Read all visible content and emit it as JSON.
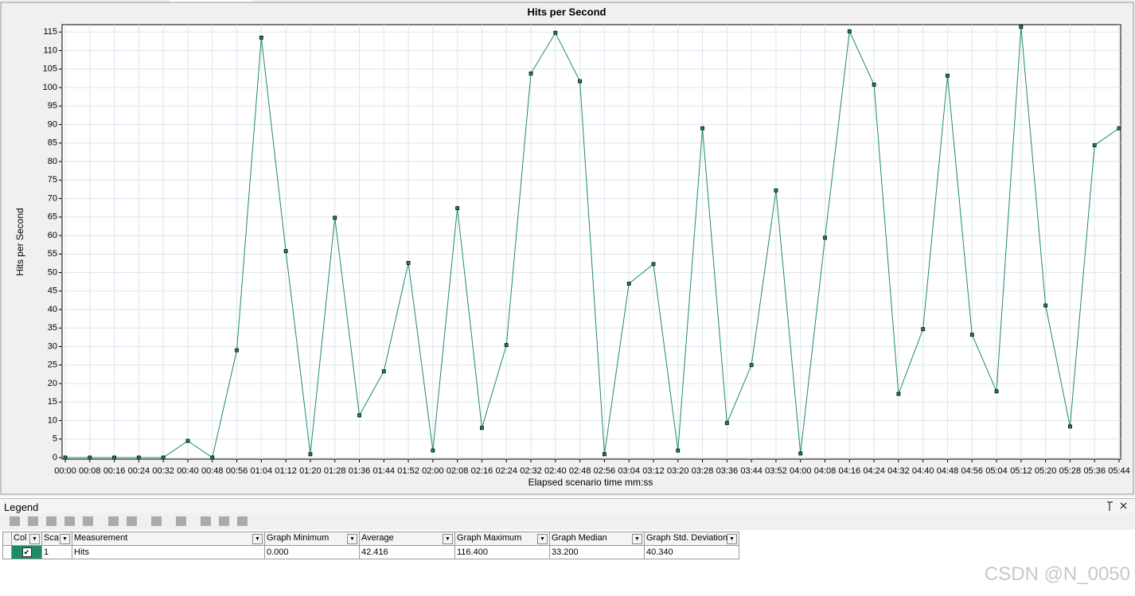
{
  "chart_data": {
    "type": "line",
    "title": "Hits per Second",
    "y_label": "Hits per Second",
    "x_label": "Elapsed scenario time mm:ss",
    "categories": [
      "00:00",
      "00:08",
      "00:16",
      "00:24",
      "00:32",
      "00:40",
      "00:48",
      "00:56",
      "01:04",
      "01:12",
      "01:20",
      "01:28",
      "01:36",
      "01:44",
      "01:52",
      "02:00",
      "02:08",
      "02:16",
      "02:24",
      "02:32",
      "02:40",
      "02:48",
      "02:56",
      "03:04",
      "03:12",
      "03:20",
      "03:28",
      "03:36",
      "03:44",
      "03:52",
      "04:00",
      "04:08",
      "04:16",
      "04:24",
      "04:32",
      "04:40",
      "04:48",
      "04:56",
      "05:04",
      "05:12",
      "05:20",
      "05:28",
      "05:36",
      "05:44"
    ],
    "series": [
      {
        "color": "#1f8a6a",
        "values": [
          0,
          0,
          0,
          0,
          0,
          4.5,
          0,
          29,
          113.5,
          55.8,
          0.9,
          64.8,
          11.4,
          23.3,
          52.6,
          1.9,
          67.4,
          8,
          30.4,
          103.8,
          114.8,
          101.7,
          0.9,
          47,
          52.3,
          1.9,
          89,
          9.3,
          25,
          72.2,
          1.1,
          59.4,
          115.2,
          100.8,
          17.2,
          34.7,
          103.2,
          33.2,
          17.9,
          116.4,
          41.1,
          8.4,
          84.4,
          89
        ]
      }
    ],
    "ylim": [
      0,
      117
    ],
    "yticks": [
      0,
      5,
      10,
      15,
      20,
      25,
      30,
      35,
      40,
      45,
      50,
      55,
      60,
      65,
      70,
      75,
      80,
      85,
      90,
      95,
      100,
      105,
      110,
      115
    ],
    "grid": true,
    "markers": true
  },
  "legend": {
    "title": "Legend",
    "columns": [
      "Col",
      "Sca",
      "Measurement",
      "Graph Minimum",
      "Average",
      "Graph Maximum",
      "Graph Median",
      "Graph Std. Deviation"
    ],
    "rows": [
      [
        "1",
        "Hits",
        "0.000",
        "42.416",
        "116.400",
        "33.200",
        "40.340"
      ]
    ]
  },
  "watermark": "CSDN @N_0050"
}
